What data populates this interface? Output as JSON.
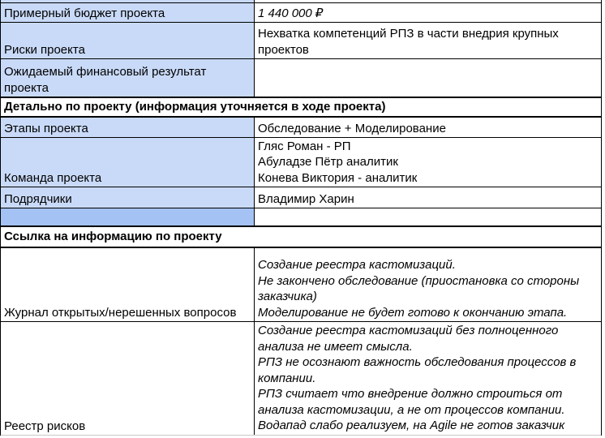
{
  "table": {
    "colors": {
      "label_bg": "#c9daf8",
      "spacer_bg": "#a4c2f4",
      "border": "#000000",
      "value_bg": "#ffffff",
      "text": "#000000"
    },
    "rows": [
      {
        "kind": "partial",
        "label": "",
        "value": ""
      },
      {
        "kind": "data",
        "label": "Примерный бюджет проекта",
        "value": "1 440 000 ₽",
        "value_italic": true
      },
      {
        "kind": "data",
        "label": "Риски проекта",
        "value": "Нехватка компетенций РПЗ в части внедрия крупных проектов",
        "value_italic": false
      },
      {
        "kind": "data",
        "label": "Ожидаемый финансовый результат проекта",
        "value": "",
        "value_italic": false
      },
      {
        "kind": "section",
        "title": "Детально по проекту (информация уточняется в ходе проекта)"
      },
      {
        "kind": "data",
        "label": "Этапы проекта",
        "value": "Обследование + Моделирование",
        "value_italic": false
      },
      {
        "kind": "data",
        "label": "Команда проекта",
        "value": "Гляс Роман - РП\nАбуладзе Пётр аналитик\nКонева Виктория - аналитик",
        "value_italic": false
      },
      {
        "kind": "data",
        "label": "Подрядчики",
        "value": "Владимир Харин",
        "value_italic": false
      },
      {
        "kind": "spacer"
      },
      {
        "kind": "section",
        "title": "Ссылка на информацию по проекту"
      },
      {
        "kind": "data",
        "label": "Журнал открытых/нерешенных вопросов",
        "value": "Создание реестра кастомизаций.\nНе закончено обследование (приостановка со стороны заказчика)\nМоделирование не будет готово к окончанию этапа.",
        "value_italic": true
      },
      {
        "kind": "data",
        "label": "Реестр рисков",
        "value": "Создание реестра кастомизаций без полноценного анализа не имеет смысла.\nРПЗ не осознают важность обследования процессов в компании.\nРПЗ считает что внедрение должно строиться от анализа кастомизации, а не от процессов компании.\nВодапад слабо реализуем, на Agile не готов заказчик",
        "value_italic": true
      }
    ]
  }
}
